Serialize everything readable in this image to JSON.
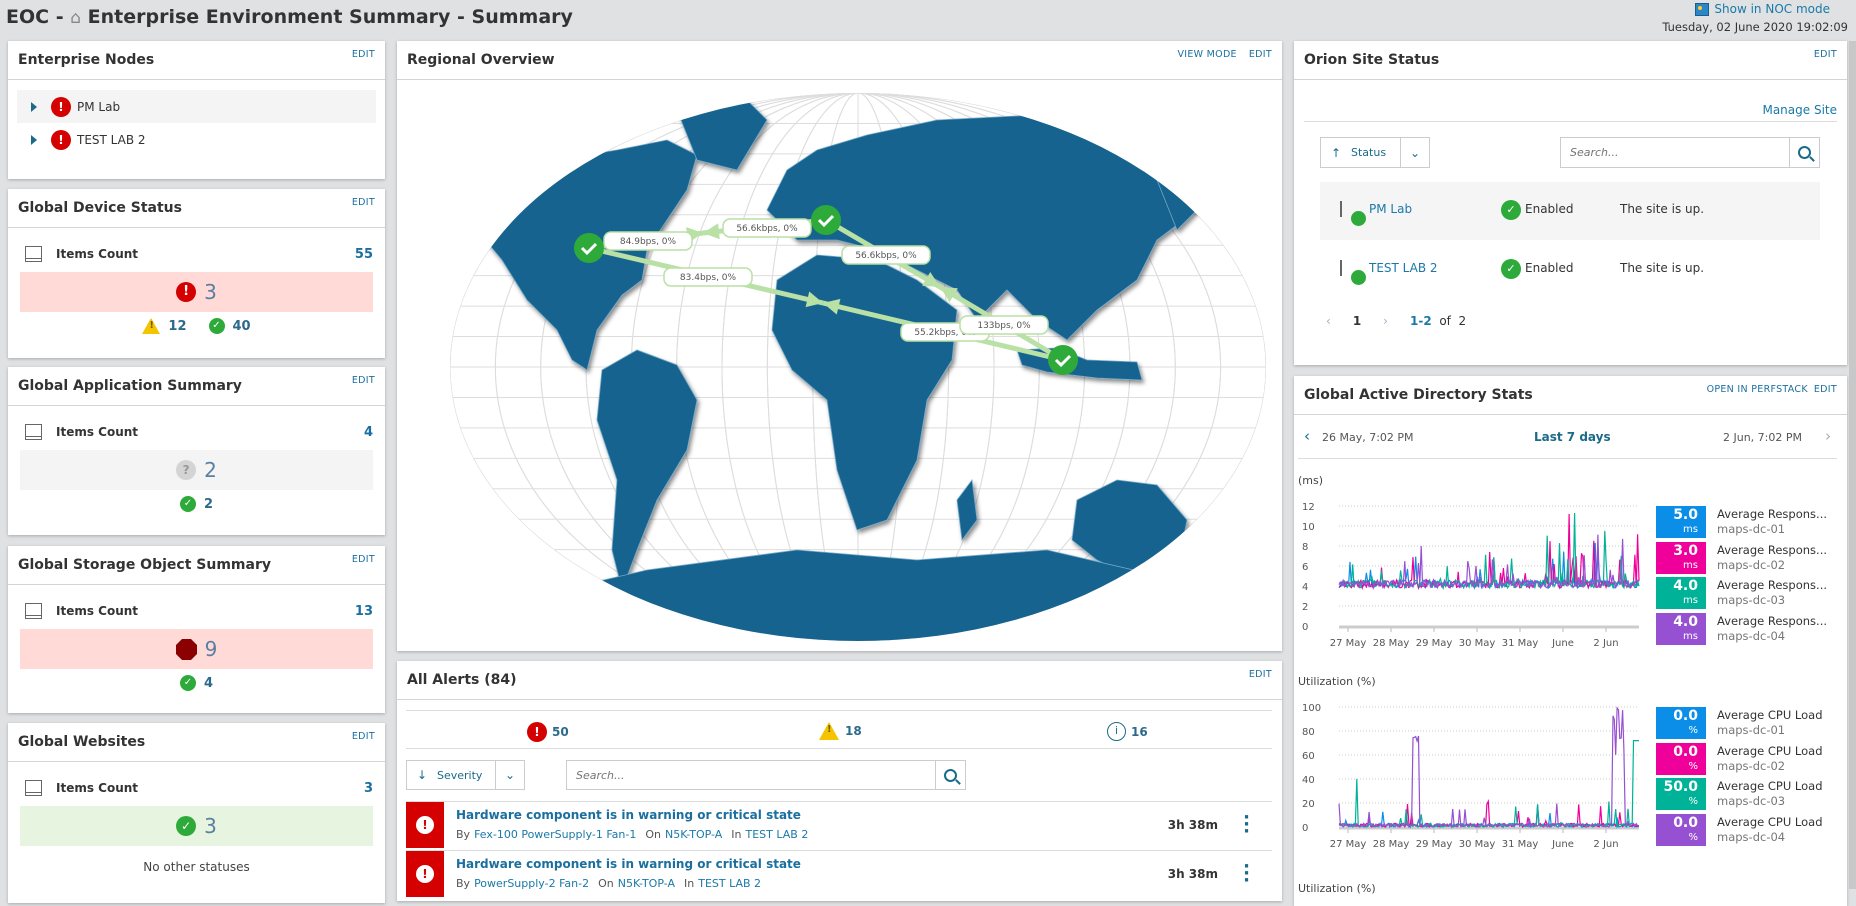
{
  "header": {
    "prefix": "EOC - ",
    "title": "Enterprise Environment Summary - Summary",
    "noc_link": "Show in NOC mode",
    "datetime": "Tuesday, 02 June 2020 19:02:09"
  },
  "enterprise_nodes": {
    "title": "Enterprise Nodes",
    "edit": "EDIT",
    "items": [
      {
        "name": "PM Lab",
        "status": "critical"
      },
      {
        "name": "TEST LAB 2",
        "status": "critical"
      }
    ]
  },
  "device_status": {
    "title": "Global Device Status",
    "edit": "EDIT",
    "items_label": "Items Count",
    "count": "55",
    "main": "3",
    "warning": "12",
    "up": "40"
  },
  "app_summary": {
    "title": "Global Application Summary",
    "edit": "EDIT",
    "items_label": "Items Count",
    "count": "4",
    "main": "2",
    "up": "2"
  },
  "storage_summary": {
    "title": "Global Storage Object Summary",
    "edit": "EDIT",
    "items_label": "Items Count",
    "count": "13",
    "main": "9",
    "up": "4"
  },
  "websites": {
    "title": "Global Websites",
    "edit": "EDIT",
    "items_label": "Items Count",
    "count": "3",
    "main": "3",
    "note": "No other statuses"
  },
  "regional": {
    "title": "Regional Overview",
    "view_mode": "VIEW MODE",
    "edit": "EDIT",
    "links": [
      "84.9bps,  0%",
      "56.6kbps,  0%",
      "56.6kbps,  0%",
      "83.4bps,  0%",
      "55.2kbps,  0%",
      "133bps,  0%"
    ]
  },
  "alerts": {
    "title": "All Alerts (84)",
    "edit": "EDIT",
    "critical": "50",
    "warning": "18",
    "info": "16",
    "sort_label": "Severity",
    "search_placeholder": "Search...",
    "rows": [
      {
        "title": "Hardware component is in warning or critical state",
        "by_label": "By",
        "by": "Fex-100 PowerSupply-1 Fan-1",
        "on_label": "On",
        "on": "N5K-TOP-A",
        "in_label": "In",
        "in": "TEST LAB 2",
        "time": "3h 38m"
      },
      {
        "title": "Hardware component is in warning or critical state",
        "by_label": "By",
        "by": "PowerSupply-2 Fan-2",
        "on_label": "On",
        "on": "N5K-TOP-A",
        "in_label": "In",
        "in": "TEST LAB 2",
        "time": "3h 38m"
      }
    ]
  },
  "orion": {
    "title": "Orion Site Status",
    "edit": "EDIT",
    "manage": "Manage Site",
    "sort_label": "Status",
    "search_placeholder": "Search...",
    "rows": [
      {
        "name": "PM Lab",
        "state": "Enabled",
        "message": "The site is up."
      },
      {
        "name": "TEST LAB 2",
        "state": "Enabled",
        "message": "The site is up."
      }
    ],
    "pagination": {
      "page": "1",
      "range": "1-2",
      "of": "of",
      "total": "2"
    }
  },
  "ad_stats": {
    "title": "Global Active Directory Stats",
    "open": "OPEN IN PERFSTACK",
    "edit": "EDIT",
    "from": "26 May, 7:02 PM",
    "range": "Last 7 days",
    "to": "2 Jun, 7:02 PM",
    "colors": [
      "#0a8ee8",
      "#f0009b",
      "#00b297",
      "#9650d2"
    ],
    "x_ticks": [
      "27 May",
      "28 May",
      "29 May",
      "30 May",
      "31 May",
      "June",
      "2 Jun"
    ],
    "charts": [
      {
        "unit_label": "(ms)",
        "y_ticks": [
          "12",
          "10",
          "8",
          "6",
          "4",
          "2",
          "0"
        ],
        "ylim": [
          0,
          12
        ],
        "legend": [
          {
            "value": "5.0",
            "unit": "ms",
            "metric": "Average Respons...",
            "node": "maps-dc-01"
          },
          {
            "value": "3.0",
            "unit": "ms",
            "metric": "Average Respons...",
            "node": "maps-dc-02"
          },
          {
            "value": "4.0",
            "unit": "ms",
            "metric": "Average Respons...",
            "node": "maps-dc-03"
          },
          {
            "value": "4.0",
            "unit": "ms",
            "metric": "Average Respons...",
            "node": "maps-dc-04"
          }
        ]
      },
      {
        "unit_label": "Utilization (%)",
        "y_ticks": [
          "100",
          "80",
          "60",
          "40",
          "20",
          "0"
        ],
        "ylim": [
          0,
          100
        ],
        "legend": [
          {
            "value": "0.0",
            "unit": "%",
            "metric": "Average CPU Load",
            "node": "maps-dc-01"
          },
          {
            "value": "0.0",
            "unit": "%",
            "metric": "Average CPU Load",
            "node": "maps-dc-02"
          },
          {
            "value": "50.0",
            "unit": "%",
            "metric": "Average CPU Load",
            "node": "maps-dc-03"
          },
          {
            "value": "0.0",
            "unit": "%",
            "metric": "Average CPU Load",
            "node": "maps-dc-04"
          }
        ]
      }
    ],
    "third_label": "Utilization (%)"
  }
}
